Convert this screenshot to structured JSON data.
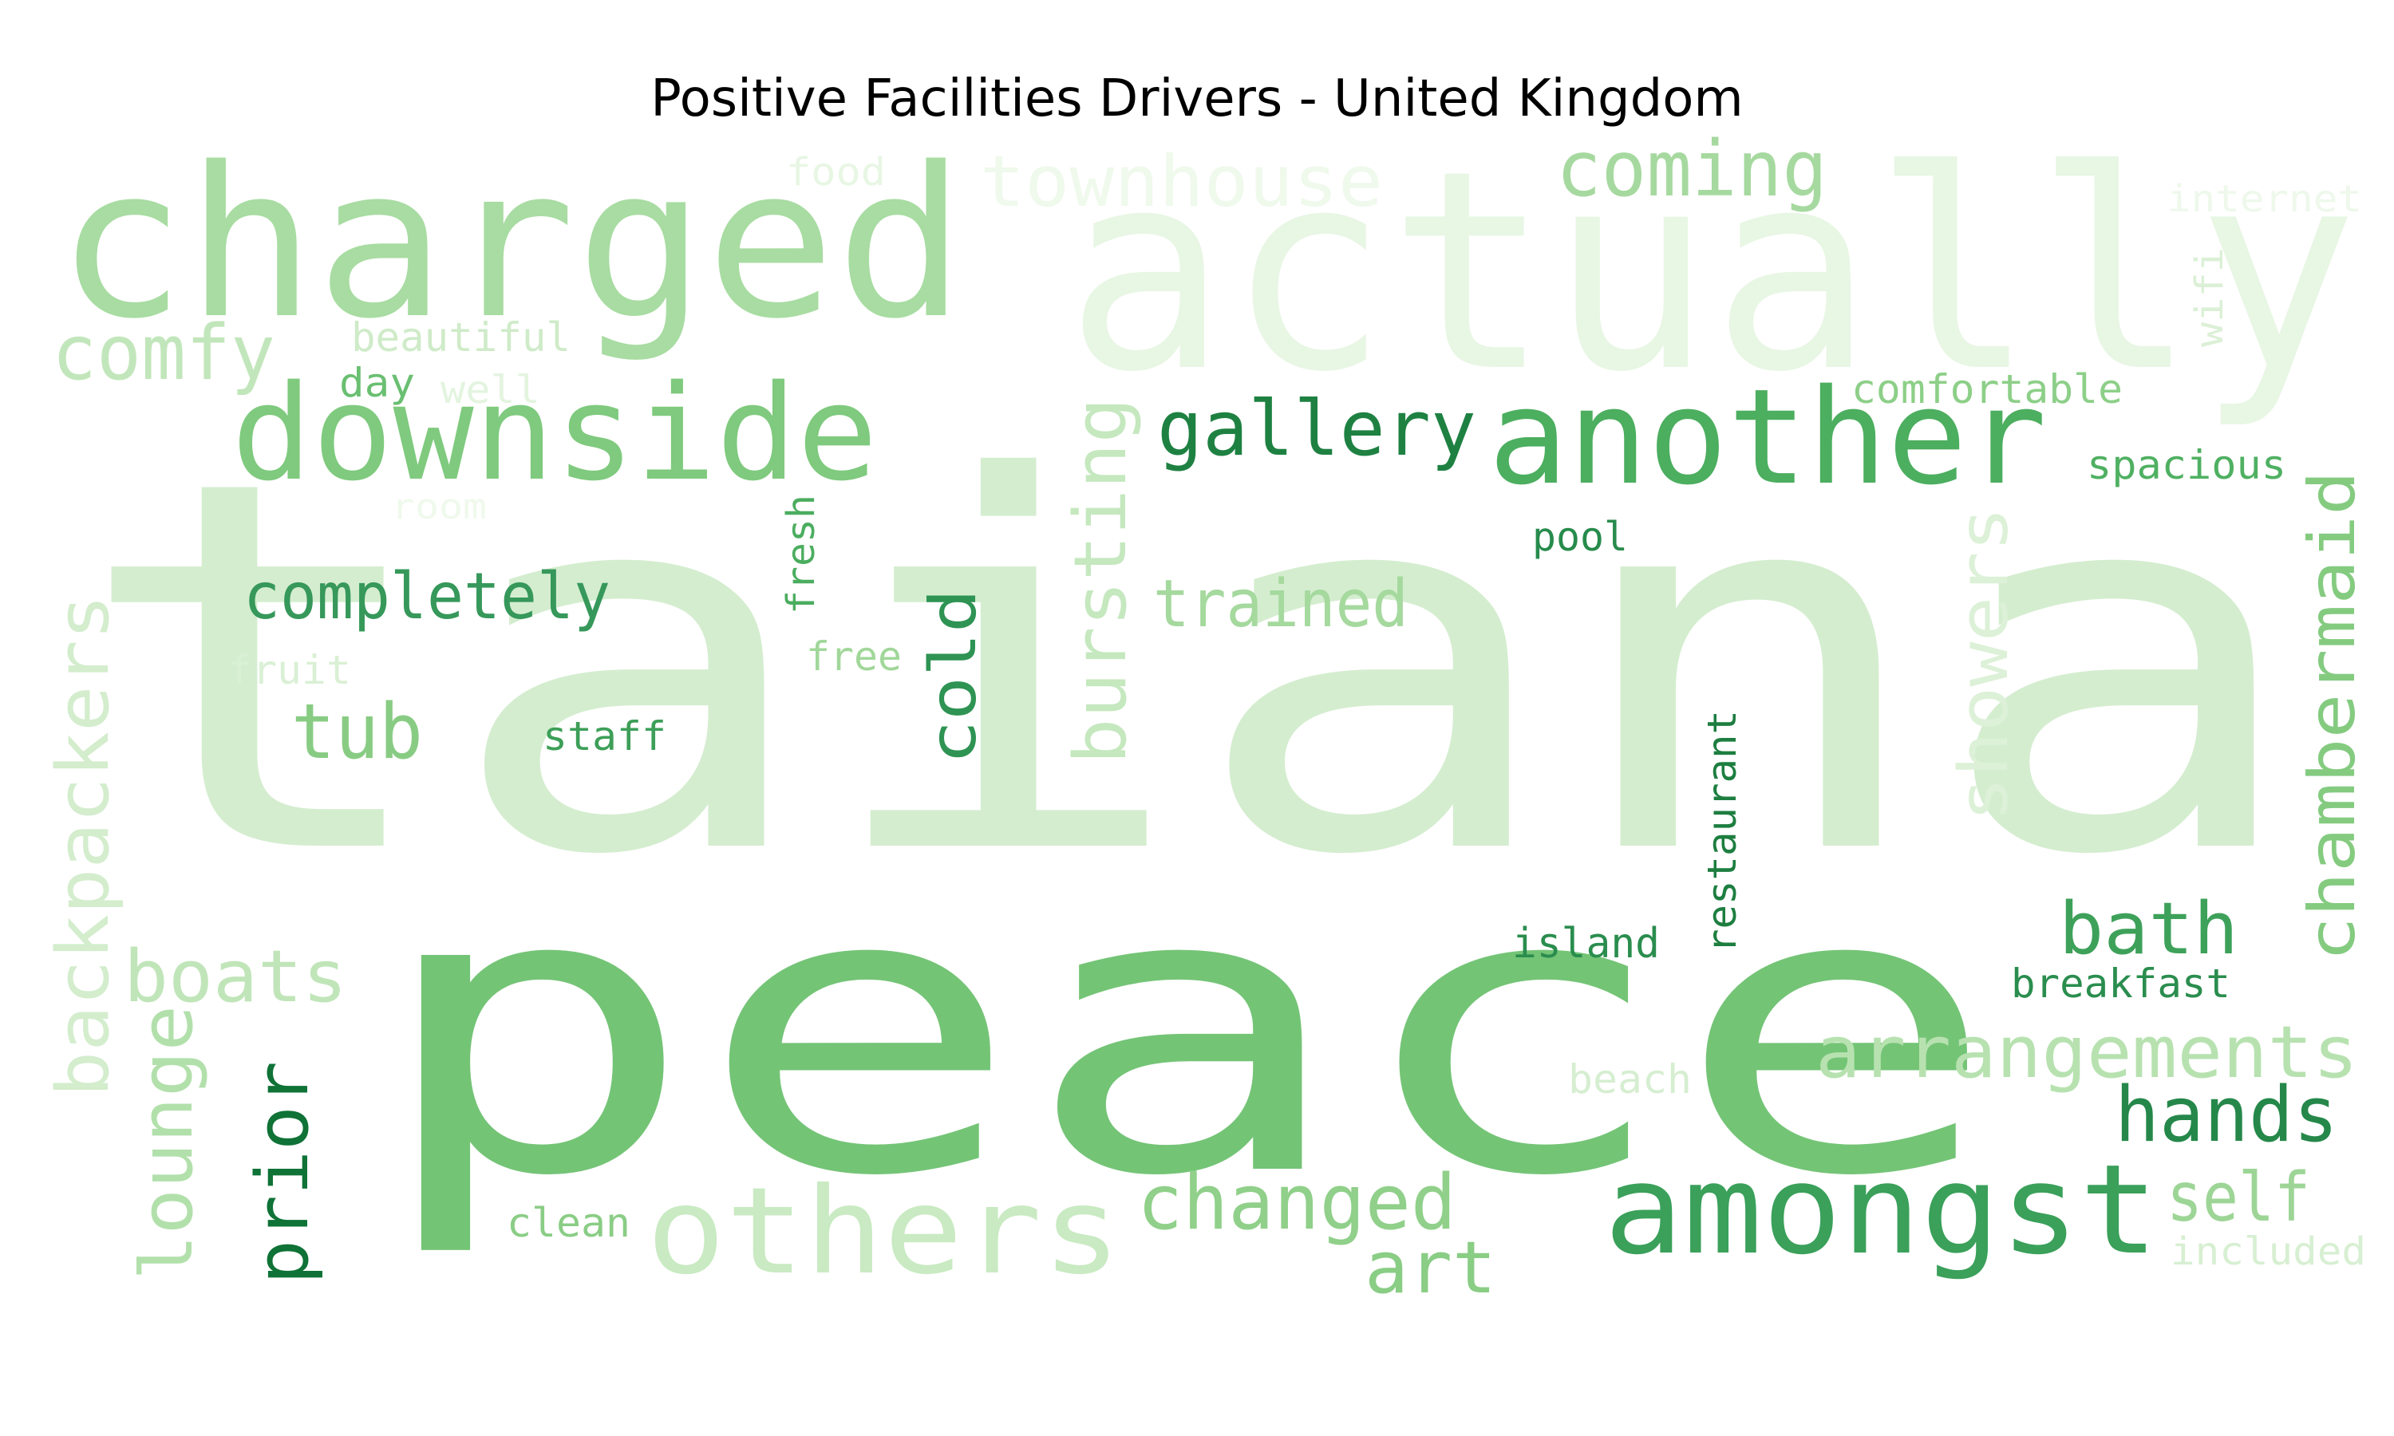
{
  "title": "Positive Facilities Drivers - United Kingdom",
  "words": [
    {
      "text": "taiana",
      "color": "#d4edcf"
    },
    {
      "text": "peace",
      "color": "#74c476"
    },
    {
      "text": "actually",
      "color": "#e8f6e4"
    },
    {
      "text": "charged",
      "color": "#a8dca2"
    },
    {
      "text": "downside",
      "color": "#7fca7e"
    },
    {
      "text": "another",
      "color": "#4cae5f"
    },
    {
      "text": "amongst",
      "color": "#3aa05a"
    },
    {
      "text": "others",
      "color": "#c9eac2"
    },
    {
      "text": "coming",
      "color": "#a6d99f"
    },
    {
      "text": "townhouse",
      "color": "#eff9ec"
    },
    {
      "text": "comfy",
      "color": "#c2e6bb"
    },
    {
      "text": "gallery",
      "color": "#1e8142"
    },
    {
      "text": "completely",
      "color": "#36985a"
    },
    {
      "text": "trained",
      "color": "#a5d99e"
    },
    {
      "text": "tub",
      "color": "#88cc83"
    },
    {
      "text": "boats",
      "color": "#c0e5b9"
    },
    {
      "text": "changed",
      "color": "#90d08a"
    },
    {
      "text": "arrangements",
      "color": "#b7e2b0"
    },
    {
      "text": "hands",
      "color": "#25884a"
    },
    {
      "text": "bath",
      "color": "#3ea15a"
    },
    {
      "text": "art",
      "color": "#8acd85"
    },
    {
      "text": "self",
      "color": "#9dd596"
    },
    {
      "text": "cold",
      "color": "#2e9353"
    },
    {
      "text": "bursting",
      "color": "#c5e8bf"
    },
    {
      "text": "showers",
      "color": "#dcf1d7"
    },
    {
      "text": "chambermaid",
      "color": "#84cb80"
    },
    {
      "text": "backpackers",
      "color": "#d3edcd"
    },
    {
      "text": "lounge",
      "color": "#b2e0ab"
    },
    {
      "text": "prior",
      "color": "#0f7236"
    },
    {
      "text": "restaurant",
      "color": "#1d7e40"
    },
    {
      "text": "fresh",
      "color": "#4bad5f"
    },
    {
      "text": "wifi",
      "color": "#dbf0d6"
    },
    {
      "text": "food",
      "color": "#e8f6e4"
    },
    {
      "text": "internet",
      "color": "#eef8eb"
    },
    {
      "text": "beautiful",
      "color": "#cfebc9"
    },
    {
      "text": "day",
      "color": "#6abf71"
    },
    {
      "text": "well",
      "color": "#e3f4df"
    },
    {
      "text": "room",
      "color": "#eff9ec"
    },
    {
      "text": "comfortable",
      "color": "#8dcf88"
    },
    {
      "text": "spacious",
      "color": "#4fb062"
    },
    {
      "text": "pool",
      "color": "#278b4c"
    },
    {
      "text": "free",
      "color": "#a1d79a"
    },
    {
      "text": "fruit",
      "color": "#daf0d5"
    },
    {
      "text": "staff",
      "color": "#3d9f58"
    },
    {
      "text": "island",
      "color": "#2a8d4e"
    },
    {
      "text": "breakfast",
      "color": "#2a8d4e"
    },
    {
      "text": "beach",
      "color": "#d6eed1"
    },
    {
      "text": "clean",
      "color": "#8acd85"
    },
    {
      "text": "included",
      "color": "#d7efd2"
    }
  ]
}
